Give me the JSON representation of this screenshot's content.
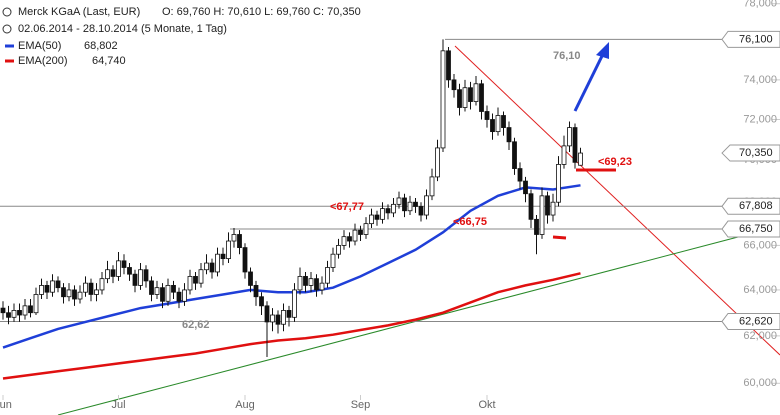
{
  "chart_data": {
    "type": "candlestick",
    "title": "Merck KGaA (Last, EUR)",
    "ohlc_text": "O: 69,760  H: 70,610  L: 69,760  C: 70,350",
    "subtitle": "02.06.2014 - 28.10.2014 (5 Monate, 1 Tag)",
    "log_scale": true,
    "ylim": [
      58.7,
      78.2
    ],
    "yticks": [
      {
        "value": 60,
        "label": "60,000"
      },
      {
        "value": 62,
        "label": "62,000"
      },
      {
        "value": 64,
        "label": "64,000"
      },
      {
        "value": 66,
        "label": "66,000"
      },
      {
        "value": 68,
        "label": "68,000"
      },
      {
        "value": 70,
        "label": "70,000"
      },
      {
        "value": 72,
        "label": "72,000"
      },
      {
        "value": 74,
        "label": "74,000"
      },
      {
        "value": 76,
        "label": "76,000"
      },
      {
        "value": 78,
        "label": "78,000"
      }
    ],
    "xticks": [
      {
        "value": 0,
        "label": "Jun"
      },
      {
        "value": 21,
        "label": "Jul"
      },
      {
        "value": 44,
        "label": "Aug"
      },
      {
        "value": 65,
        "label": "Sep"
      },
      {
        "value": 88,
        "label": "Okt"
      }
    ],
    "open": [
      63.2,
      63.0,
      62.8,
      63.1,
      62.9,
      63.3,
      63.0,
      63.8,
      64.2,
      63.9,
      64.4,
      64.1,
      63.7,
      64.0,
      63.6,
      63.9,
      64.3,
      63.8,
      64.0,
      64.5,
      64.9,
      64.6,
      65.3,
      65.0,
      64.7,
      64.2,
      64.9,
      64.4,
      63.8,
      64.1,
      63.5,
      64.2,
      63.9,
      63.5,
      64.0,
      64.6,
      64.3,
      64.9,
      65.2,
      64.8,
      65.6,
      65.4,
      66.2,
      66.5,
      65.9,
      64.8,
      64.2,
      63.7,
      63.3,
      62.6,
      62.9,
      62.5,
      63.1,
      62.8,
      64.0,
      64.6,
      64.2,
      64.5,
      64.0,
      64.3,
      65.0,
      65.6,
      66.0,
      66.4,
      66.2,
      66.7,
      66.5,
      67.0,
      67.4,
      67.2,
      67.7,
      67.5,
      67.9,
      68.2,
      67.6,
      68.0,
      67.8,
      67.4,
      68.3,
      69.2,
      70.6,
      75.5,
      74.0,
      73.5,
      72.6,
      73.6,
      72.9,
      73.8,
      72.4,
      72.0,
      71.4,
      72.2,
      71.6,
      70.9,
      69.6,
      69.0,
      68.4,
      67.2,
      66.5,
      68.3,
      67.4,
      68.0,
      69.8,
      70.7,
      71.6,
      69.76
    ],
    "high": [
      63.5,
      63.3,
      63.4,
      63.4,
      63.6,
      63.6,
      64.1,
      64.5,
      64.4,
      64.7,
      64.6,
      64.3,
      64.3,
      64.2,
      64.2,
      64.6,
      64.5,
      64.3,
      64.8,
      65.3,
      65.1,
      65.7,
      65.6,
      65.2,
      64.9,
      65.2,
      65.1,
      64.6,
      64.4,
      64.3,
      64.5,
      64.4,
      64.1,
      64.3,
      64.9,
      64.8,
      65.2,
      65.6,
      65.4,
      65.9,
      65.9,
      66.6,
      66.8,
      66.7,
      66.1,
      65.0,
      64.4,
      63.9,
      63.5,
      63.2,
      63.1,
      63.4,
      63.3,
      64.3,
      65.0,
      64.8,
      64.8,
      64.7,
      64.6,
      65.3,
      65.9,
      66.3,
      66.7,
      66.6,
      67.0,
      66.9,
      67.3,
      67.7,
      67.6,
      68.0,
      67.9,
      68.2,
      68.5,
      68.4,
      68.3,
      68.2,
      68.0,
      68.6,
      69.6,
      71.0,
      76.1,
      75.7,
      74.3,
      73.8,
      74.0,
      73.9,
      74.2,
      74.0,
      72.7,
      72.3,
      72.6,
      72.4,
      71.9,
      71.1,
      69.9,
      69.2,
      68.6,
      67.4,
      68.7,
      68.5,
      68.4,
      70.2,
      71.2,
      71.9,
      71.8,
      70.61
    ],
    "low": [
      62.7,
      62.5,
      62.6,
      62.6,
      62.7,
      62.8,
      62.9,
      63.6,
      63.6,
      63.7,
      63.9,
      63.4,
      63.5,
      63.3,
      63.4,
      63.7,
      63.5,
      63.5,
      63.8,
      64.3,
      64.3,
      64.4,
      64.7,
      64.4,
      63.9,
      64.0,
      64.1,
      63.5,
      63.6,
      63.2,
      63.3,
      63.6,
      63.2,
      63.3,
      63.8,
      64.0,
      64.1,
      64.7,
      64.5,
      64.6,
      65.1,
      65.2,
      65.9,
      65.6,
      64.5,
      63.9,
      63.3,
      62.9,
      61.1,
      62.2,
      62.1,
      62.2,
      62.4,
      62.6,
      63.8,
      63.9,
      63.9,
      63.7,
      63.8,
      64.1,
      64.8,
      65.4,
      65.8,
      65.9,
      66.0,
      66.2,
      66.3,
      66.8,
      66.9,
      67.0,
      67.2,
      67.3,
      67.7,
      67.3,
      67.4,
      67.5,
      67.1,
      67.2,
      68.1,
      69.0,
      70.4,
      73.6,
      73.1,
      72.2,
      72.4,
      72.5,
      72.7,
      72.0,
      71.6,
      71.0,
      71.2,
      71.2,
      70.5,
      69.3,
      68.6,
      68.0,
      66.8,
      65.6,
      66.3,
      67.0,
      67.1,
      67.8,
      69.6,
      70.4,
      69.6,
      69.76
    ],
    "close": [
      63.0,
      62.8,
      63.1,
      62.9,
      63.3,
      63.0,
      63.8,
      64.2,
      63.9,
      64.4,
      64.1,
      63.7,
      64.0,
      63.6,
      63.9,
      64.3,
      63.8,
      64.0,
      64.5,
      64.9,
      64.6,
      65.3,
      65.0,
      64.7,
      64.2,
      64.9,
      64.4,
      63.8,
      64.1,
      63.5,
      64.2,
      63.9,
      63.5,
      64.0,
      64.6,
      64.3,
      64.9,
      65.2,
      64.8,
      65.6,
      65.4,
      66.2,
      66.5,
      65.9,
      64.8,
      64.2,
      63.7,
      63.3,
      62.6,
      62.9,
      62.5,
      63.1,
      62.8,
      64.0,
      64.6,
      64.2,
      64.5,
      64.0,
      64.3,
      65.0,
      65.6,
      66.0,
      66.4,
      66.2,
      66.7,
      66.5,
      67.0,
      67.4,
      67.2,
      67.7,
      67.5,
      67.9,
      68.2,
      67.6,
      68.0,
      67.8,
      67.4,
      68.3,
      69.2,
      70.6,
      75.5,
      74.0,
      73.5,
      72.6,
      73.6,
      72.9,
      73.8,
      72.4,
      72.0,
      71.4,
      72.2,
      71.6,
      70.9,
      69.6,
      69.0,
      68.4,
      67.2,
      66.5,
      68.3,
      67.4,
      68.0,
      69.8,
      70.7,
      71.6,
      69.9,
      70.35
    ],
    "series": [
      {
        "name": "EMA(50)",
        "color": "#1f3fd8",
        "value_label": "68,802",
        "x": [
          0,
          5,
          10,
          15,
          20,
          25,
          30,
          35,
          40,
          45,
          50,
          55,
          60,
          65,
          70,
          75,
          80,
          85,
          90,
          95,
          100,
          105
        ],
        "values": [
          61.5,
          61.9,
          62.3,
          62.6,
          62.9,
          63.2,
          63.4,
          63.6,
          63.8,
          64.0,
          63.9,
          63.9,
          64.1,
          64.6,
          65.2,
          65.8,
          66.6,
          67.6,
          68.3,
          68.7,
          68.6,
          68.802
        ]
      },
      {
        "name": "EMA(200)",
        "color": "#e01010",
        "value_label": "64,740",
        "x": [
          0,
          5,
          10,
          15,
          20,
          25,
          30,
          35,
          40,
          45,
          50,
          55,
          60,
          65,
          70,
          75,
          80,
          85,
          90,
          95,
          100,
          105
        ],
        "values": [
          60.2,
          60.35,
          60.5,
          60.65,
          60.8,
          60.95,
          61.1,
          61.25,
          61.45,
          61.65,
          61.8,
          61.9,
          62.05,
          62.25,
          62.45,
          62.7,
          63.0,
          63.45,
          63.9,
          64.2,
          64.45,
          64.74
        ]
      }
    ],
    "levels": [
      {
        "value": 76.1,
        "label": "76,100"
      },
      {
        "value": 67.808,
        "label": "67,808"
      },
      {
        "value": 66.75,
        "label": "66,750"
      },
      {
        "value": 62.62,
        "label": "62,620"
      }
    ],
    "last_price": {
      "value": 70.35,
      "label": "70,350"
    },
    "annotations": [
      "76,10",
      "<67,77",
      "<66,75",
      "<69,23",
      "62,62"
    ]
  }
}
